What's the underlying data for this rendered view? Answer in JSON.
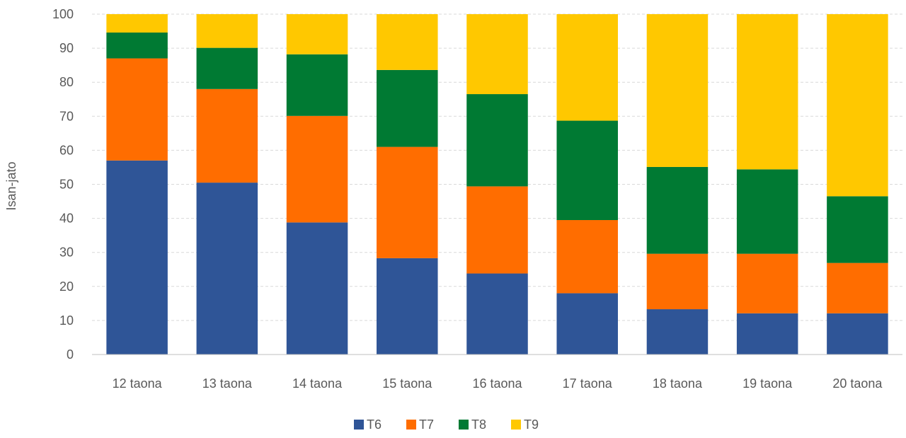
{
  "chart_data": {
    "type": "bar",
    "stacked": true,
    "title": "",
    "xlabel": "",
    "ylabel": "Isan-jato",
    "ylim": [
      0,
      100
    ],
    "yticks": [
      0,
      10,
      20,
      30,
      40,
      50,
      60,
      70,
      80,
      90,
      100
    ],
    "grid": true,
    "legend_position": "bottom",
    "categories": [
      "12 taona",
      "13 taona",
      "14 taona",
      "15 taona",
      "16 taona",
      "17 taona",
      "18 taona",
      "19 taona",
      "20 taona"
    ],
    "series": [
      {
        "name": "T6",
        "color": "#2F5597",
        "values": [
          57.0,
          50.5,
          38.8,
          28.3,
          23.8,
          18.0,
          13.3,
          12.1,
          12.1
        ]
      },
      {
        "name": "T7",
        "color": "#FF6D00",
        "values": [
          30.0,
          27.5,
          31.3,
          32.7,
          25.6,
          21.5,
          16.3,
          17.5,
          14.8
        ]
      },
      {
        "name": "T8",
        "color": "#007A33",
        "values": [
          7.6,
          12.1,
          18.1,
          22.6,
          27.1,
          29.2,
          25.5,
          24.8,
          19.6
        ]
      },
      {
        "name": "T9",
        "color": "#FFC800",
        "values": [
          5.4,
          9.9,
          11.8,
          16.4,
          23.5,
          31.3,
          44.9,
          45.6,
          53.5
        ]
      }
    ]
  }
}
